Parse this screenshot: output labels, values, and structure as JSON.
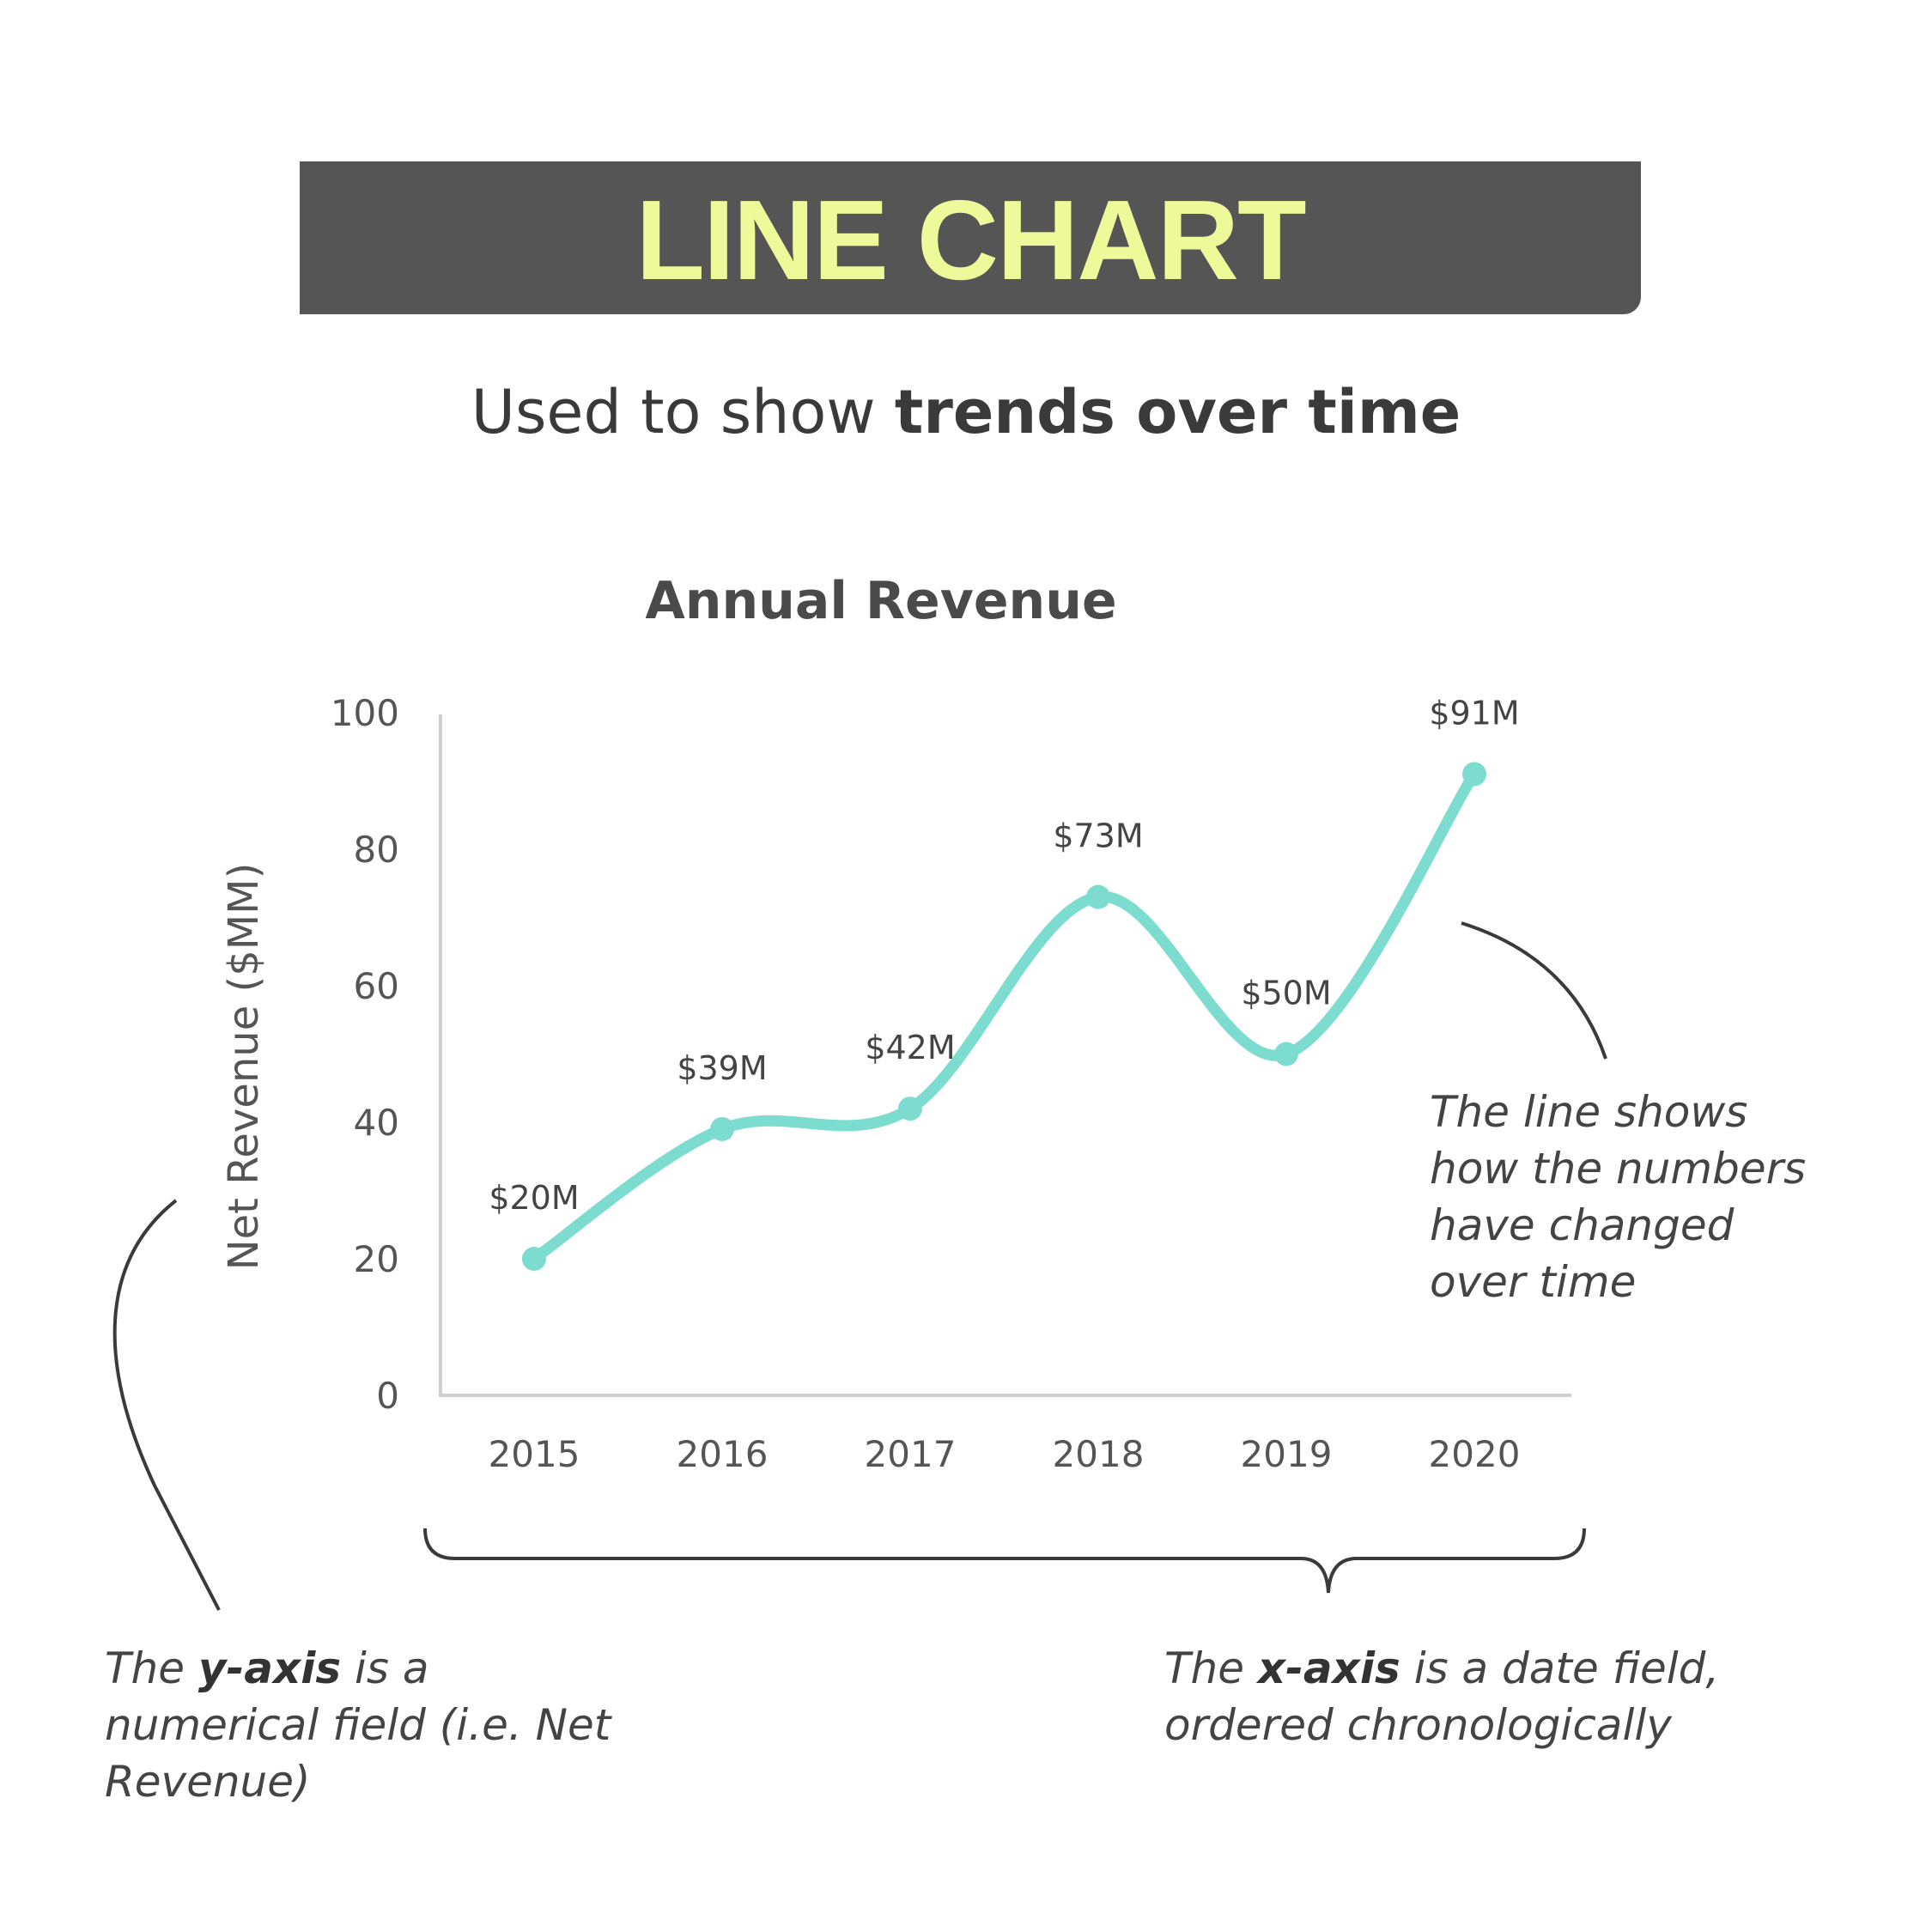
{
  "banner": {
    "title": "LINE CHART"
  },
  "subtitle": {
    "prefix": "Used to show ",
    "emphasis": "trends over time"
  },
  "chart_data": {
    "type": "line",
    "title": "Annual Revenue",
    "xlabel": "",
    "ylabel": "Net Revenue ($MM)",
    "x": [
      "2015",
      "2016",
      "2017",
      "2018",
      "2019",
      "2020"
    ],
    "series": [
      {
        "values": [
          20,
          39,
          42,
          73,
          50,
          91
        ],
        "data_labels": [
          "$20M",
          "$39M",
          "$42M",
          "$73M",
          "$50M",
          "$91M"
        ],
        "color": "#7DDCD0"
      }
    ],
    "yticks": [
      0,
      20,
      40,
      60,
      80,
      100
    ],
    "ylim": [
      0,
      100
    ],
    "grid": false,
    "legend": "none",
    "axis_color": "#d0d0d0"
  },
  "annotations": {
    "line_note": "The line shows how the numbers have changed over time",
    "y_note": {
      "pre": "The ",
      "emph": "y-axis",
      "post": " is a numerical field (i.e. Net Revenue)"
    },
    "x_note": {
      "pre": "The ",
      "emph": "x-axis",
      "post": " is a date field, ordered chronologically"
    }
  },
  "colors": {
    "banner_bg": "#555555",
    "banner_text": "#EEF99A",
    "line": "#7DDCD0",
    "callout": "#3a3a3a"
  }
}
